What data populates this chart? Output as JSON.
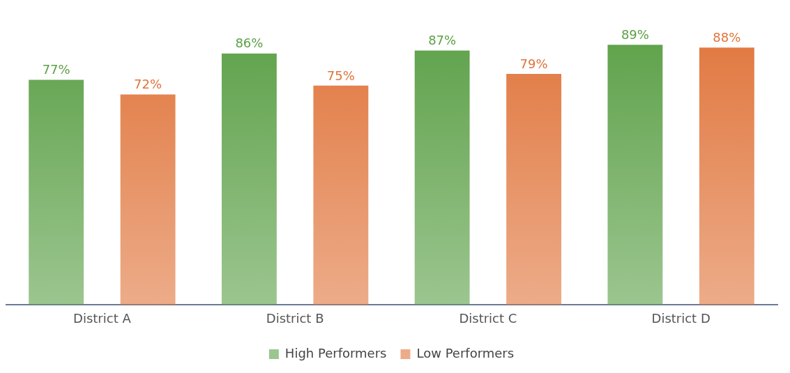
{
  "chart_data": {
    "type": "bar",
    "categories": [
      "District A",
      "District B",
      "District C",
      "District D"
    ],
    "series": [
      {
        "name": "High Performers",
        "color": "#5a9f45",
        "values": [
          77,
          86,
          87,
          89
        ],
        "value_labels": [
          "77%",
          "86%",
          "87%",
          "89%"
        ]
      },
      {
        "name": "Low Performers",
        "color": "#e0743a",
        "values": [
          72,
          75,
          79,
          88
        ],
        "value_labels": [
          "72%",
          "75%",
          "79%",
          "88%"
        ]
      }
    ],
    "legend": "bottom",
    "grid": false
  }
}
